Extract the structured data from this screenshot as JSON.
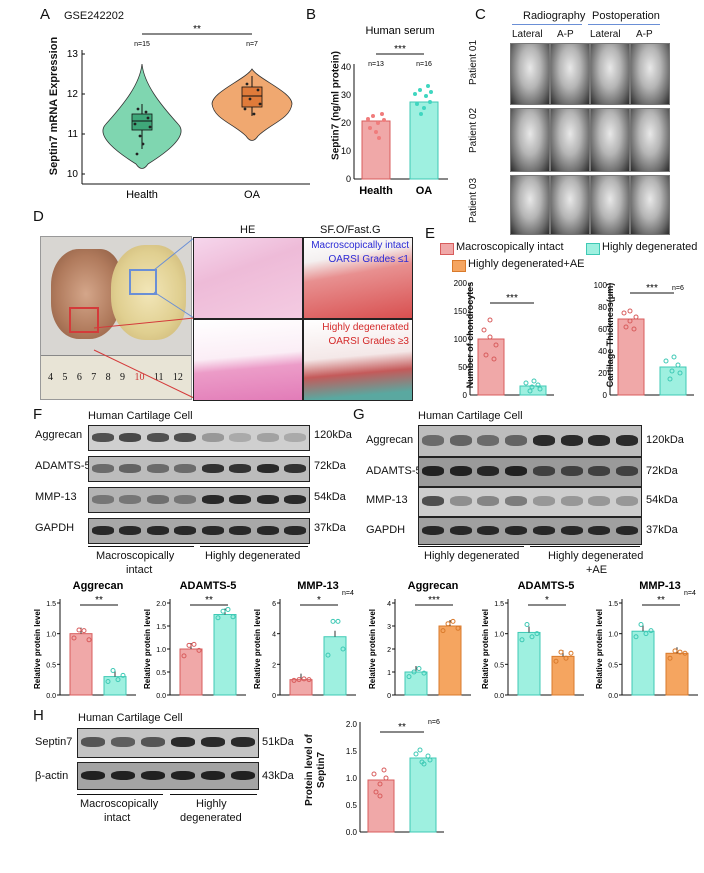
{
  "colors": {
    "health": "#f0a8a8",
    "health_edge": "#d85c5c",
    "oa": "#9ef0e0",
    "oa_edge": "#3fc9b5",
    "ae": "#f5a560",
    "ae_edge": "#d97a2c",
    "violin_green": "#7fd6b0",
    "violin_orange": "#f0a870"
  },
  "panels": {
    "A": "A",
    "B": "B",
    "C": "C",
    "D": "D",
    "E": "E",
    "F": "F",
    "G": "G",
    "H": "H"
  },
  "panelA": {
    "dataset": "GSE242202",
    "sig": "**",
    "n1": "n=15",
    "n2": "n=7",
    "ylabel": "Septin7 mRNA Expression",
    "yticks": [
      "10",
      "11",
      "12",
      "13"
    ],
    "xcats": [
      "Health",
      "OA"
    ]
  },
  "panelB": {
    "title": "Human serum",
    "sig": "***",
    "n1": "n=13",
    "n2": "n=16",
    "ylabel": "Septin7 (ng/ml protein)",
    "yticks": [
      "0",
      "10",
      "20",
      "30",
      "40"
    ],
    "xcats": [
      "Health",
      "OA"
    ]
  },
  "panelC": {
    "hdr1": "Radiography",
    "hdr2": "Postoperation",
    "sub1": "Lateral",
    "sub2": "A-P",
    "sub3": "Lateral",
    "sub4": "A-P",
    "rows": [
      "Patient 01",
      "Patient 02",
      "Patient 03"
    ]
  },
  "panelD": {
    "he": "HE",
    "sfo": "SF.O/Fast.G",
    "intact1": "Macroscopically intact",
    "intact2": "OARSI Grades ≤1",
    "degen1": "Highly degenerated",
    "degen2": "OARSI Grades ≥3",
    "ruler": [
      "4",
      "5",
      "6",
      "7",
      "8",
      "9",
      "10",
      "11",
      "12"
    ]
  },
  "panelE": {
    "legend": [
      "Macroscopically intact",
      "Highly degenerated",
      "Highly degenerated+AE"
    ],
    "ylabel1": "Number of chondrocytes",
    "ylabel2": "Cartilage Thickness(μm)",
    "sig1": "***",
    "sig2": "***",
    "n": "n=6",
    "yticks1": [
      "0",
      "50",
      "100",
      "150",
      "200"
    ],
    "yticks2": [
      "0",
      "20",
      "40",
      "60",
      "80",
      "100"
    ]
  },
  "panelF": {
    "title": "Human Cartilage Cell",
    "rows": [
      "Aggrecan",
      "ADAMTS-5",
      "MMP-13",
      "GAPDH"
    ],
    "kda": [
      "120kDa",
      "72kDa",
      "54kDa",
      "37kDa"
    ],
    "grp1a": "Macroscopically",
    "grp1b": "intact",
    "grp2": "Highly degenerated"
  },
  "panelG": {
    "title": "Human Cartilage Cell",
    "rows": [
      "Aggrecan",
      "ADAMTS-5",
      "MMP-13",
      "GAPDH"
    ],
    "kda": [
      "120kDa",
      "72kDa",
      "54kDa",
      "37kDa"
    ],
    "grp1": "Highly degenerated",
    "grp2a": "Highly degenerated",
    "grp2b": "+AE"
  },
  "bars": {
    "ylabel": "Relative protein level",
    "n": "n=4",
    "charts": [
      {
        "title": "Aggrecan",
        "sig": "**",
        "yticks": [
          "0.0",
          "0.5",
          "1.0",
          "1.5"
        ],
        "ymax": 1.5,
        "values": [
          1.0,
          0.3
        ],
        "pts": [
          [
            0.93,
            1.06,
            1.05,
            0.9
          ],
          [
            0.22,
            0.4,
            0.25,
            0.32
          ]
        ],
        "c": [
          "health",
          "oa"
        ]
      },
      {
        "title": "ADAMTS-5",
        "sig": "**",
        "yticks": [
          "0.0",
          "0.5",
          "1.0",
          "1.5",
          "2.0"
        ],
        "ymax": 2.0,
        "values": [
          1.0,
          1.75
        ],
        "pts": [
          [
            0.85,
            1.08,
            1.1,
            0.97
          ],
          [
            1.68,
            1.82,
            1.86,
            1.7
          ]
        ],
        "c": [
          "health",
          "oa"
        ]
      },
      {
        "title": "MMP-13",
        "sig": "*",
        "yticks": [
          "0",
          "2",
          "4",
          "6"
        ],
        "ymax": 6,
        "values": [
          1.0,
          3.8
        ],
        "pts": [
          [
            0.95,
            1.0,
            1.05,
            1.0
          ],
          [
            2.6,
            4.8,
            4.8,
            3.0
          ]
        ],
        "c": [
          "health",
          "oa"
        ]
      },
      {
        "title": "Aggrecan",
        "sig": "***",
        "yticks": [
          "0",
          "1",
          "2",
          "3",
          "4"
        ],
        "ymax": 4,
        "values": [
          1.0,
          3.0
        ],
        "pts": [
          [
            0.8,
            1.0,
            1.15,
            0.95
          ],
          [
            2.8,
            3.1,
            3.2,
            2.9
          ]
        ],
        "c": [
          "oa",
          "ae"
        ]
      },
      {
        "title": "ADAMTS-5",
        "sig": "*",
        "yticks": [
          "0.0",
          "0.5",
          "1.0",
          "1.5"
        ],
        "ymax": 1.5,
        "values": [
          1.02,
          0.63
        ],
        "pts": [
          [
            0.9,
            1.15,
            0.95,
            1.0
          ],
          [
            0.55,
            0.7,
            0.6,
            0.68
          ]
        ],
        "c": [
          "oa",
          "ae"
        ]
      },
      {
        "title": "MMP-13",
        "sig": "**",
        "yticks": [
          "0.0",
          "0.5",
          "1.0",
          "1.5"
        ],
        "ymax": 1.5,
        "values": [
          1.04,
          0.68
        ],
        "pts": [
          [
            0.95,
            1.15,
            1.0,
            1.05
          ],
          [
            0.6,
            0.72,
            0.7,
            0.68
          ]
        ],
        "c": [
          "oa",
          "ae"
        ]
      }
    ]
  },
  "panelH": {
    "title": "Human Cartilage Cell",
    "rows": [
      "Septin7",
      "β-actin"
    ],
    "kda": [
      "51kDa",
      "43kDa"
    ],
    "grp1a": "Macroscopically",
    "grp1b": "intact",
    "grp2a": "Highly",
    "grp2b": "degenerated",
    "ylabel1": "Protein level of",
    "ylabel2": "Septin7",
    "sig": "**",
    "n": "n=6",
    "yticks": [
      "0.0",
      "0.5",
      "1.0",
      "1.5",
      "2.0"
    ]
  }
}
